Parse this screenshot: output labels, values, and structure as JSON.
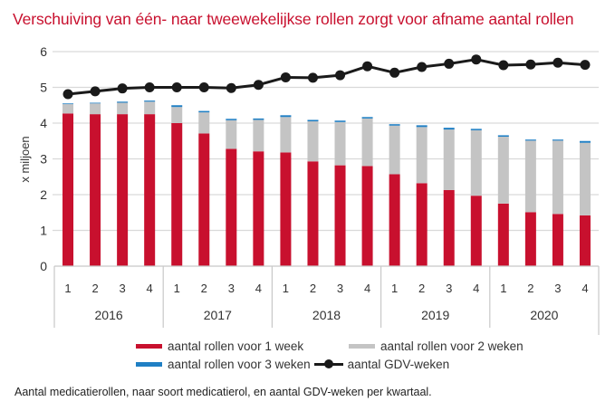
{
  "title": "Verschuiving van één- naar tweewekelijkse rollen zorgt voor afname aantal rollen",
  "caption": "Aantal medicatierollen, naar soort medicatierol, en aantal GDV-weken per kwartaal.",
  "chart_data": {
    "type": "bar",
    "stacked": true,
    "title": "Verschuiving van één- naar tweewekelijkse rollen zorgt voor afname aantal rollen",
    "xlabel": "",
    "ylabel": "x miljoen",
    "ylim": [
      0,
      6
    ],
    "yticks": [
      "0",
      "1",
      "2",
      "3",
      "4",
      "5",
      "6"
    ],
    "grid": true,
    "legend_position": "bottom",
    "years": [
      "2016",
      "2017",
      "2018",
      "2019",
      "2020"
    ],
    "quarters": [
      "1",
      "2",
      "3",
      "4"
    ],
    "categories": [
      "2016-1",
      "2016-2",
      "2016-3",
      "2016-4",
      "2017-1",
      "2017-2",
      "2017-3",
      "2017-4",
      "2018-1",
      "2018-2",
      "2018-3",
      "2018-4",
      "2019-1",
      "2019-2",
      "2019-3",
      "2019-4",
      "2020-1",
      "2020-2",
      "2020-3",
      "2020-4"
    ],
    "series": [
      {
        "name": "aantal rollen voor 1 week",
        "kind": "bar",
        "color": "#c8102e",
        "values": [
          4.27,
          4.25,
          4.25,
          4.25,
          4.0,
          3.71,
          3.28,
          3.21,
          3.18,
          2.93,
          2.82,
          2.8,
          2.57,
          2.32,
          2.13,
          1.97,
          1.75,
          1.51,
          1.46,
          1.42
        ]
      },
      {
        "name": "aantal rollen voor 2 weken",
        "kind": "bar",
        "color": "#c4c4c4",
        "values": [
          0.26,
          0.3,
          0.32,
          0.35,
          0.45,
          0.59,
          0.8,
          0.88,
          0.99,
          1.12,
          1.21,
          1.33,
          1.36,
          1.57,
          1.69,
          1.83,
          1.87,
          2.0,
          2.05,
          2.03
        ]
      },
      {
        "name": "aantal rollen voor 3 weken",
        "kind": "bar",
        "color": "#1f7fc4",
        "values": [
          0.02,
          0.02,
          0.03,
          0.03,
          0.05,
          0.04,
          0.04,
          0.04,
          0.05,
          0.04,
          0.04,
          0.04,
          0.04,
          0.05,
          0.05,
          0.04,
          0.04,
          0.03,
          0.03,
          0.05
        ]
      },
      {
        "name": "aantal GDV-weken",
        "kind": "line",
        "color": "#1a1a1a",
        "values": [
          4.81,
          4.89,
          4.97,
          5.0,
          5.0,
          5.0,
          4.98,
          5.07,
          5.28,
          5.27,
          5.34,
          5.59,
          5.41,
          5.57,
          5.66,
          5.78,
          5.62,
          5.64,
          5.69,
          5.63
        ]
      }
    ]
  }
}
